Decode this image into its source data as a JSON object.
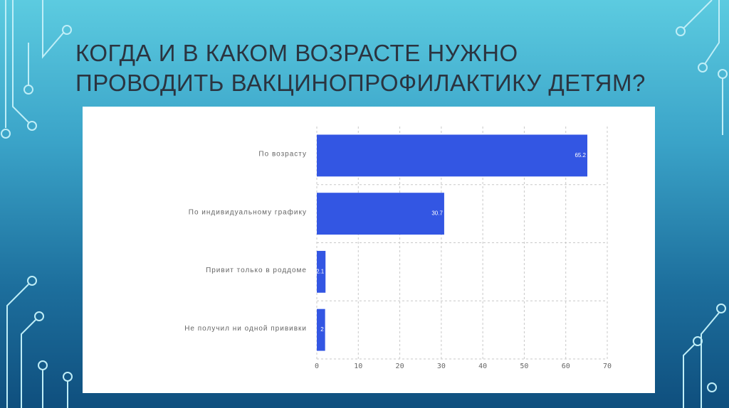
{
  "chart_data": {
    "type": "bar",
    "orientation": "horizontal",
    "title": "КОГДА И В КАКОМ ВОЗРАСТЕ НУЖНО ПРОВОДИТЬ ВАКЦИНОПРОФИЛАКТИКУ ДЕТЯМ?",
    "categories": [
      "По возрасту",
      "По индивидуальному графику",
      "Привит только в роддоме",
      "Не получил ни одной прививки"
    ],
    "values": [
      65.2,
      30.7,
      2.1,
      2
    ],
    "color": "#3356e3",
    "xlim": [
      0,
      70
    ],
    "xticks": [
      0,
      10,
      20,
      30,
      40,
      50,
      60,
      70
    ],
    "grid": true
  }
}
